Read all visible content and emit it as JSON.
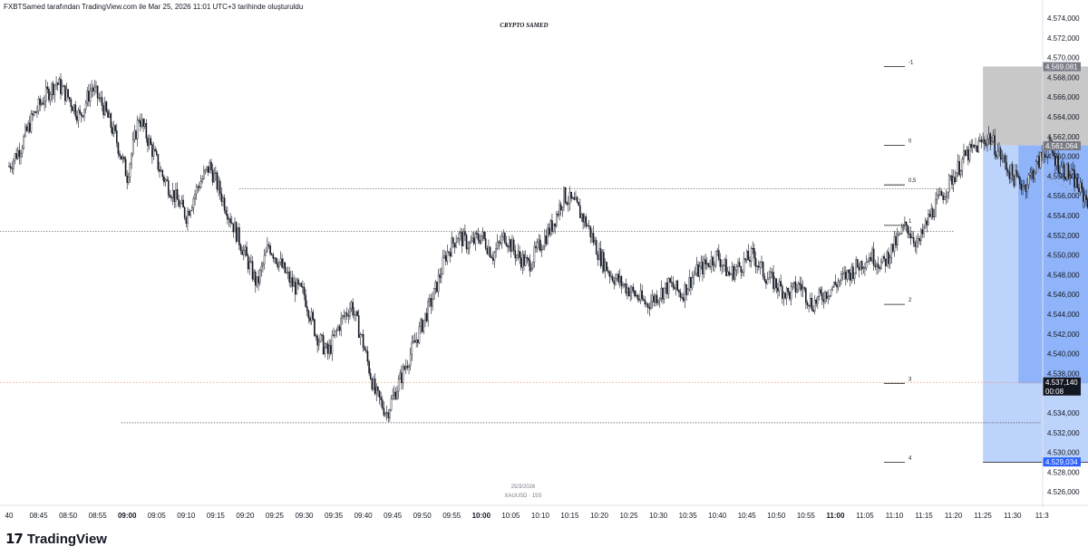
{
  "header": {
    "caption": "FXBTSamed tarafından TradingView.com ile Mar 25, 2026 11:01 UTC+3 tarihinde oluşturuldu"
  },
  "watermark": "CRYPTO SAMED",
  "footer": {
    "brand_logo": "17",
    "brand_name": "TradingView"
  },
  "colors": {
    "candle": "#131722",
    "gray_zone": "#c8c8c8",
    "blue_zone": "#8fb4f9",
    "light_blue_zone": "#bcd3fb",
    "price_line": "#f57f4a",
    "price_tag": "#131722",
    "target_tag": "#2962ff"
  },
  "chart_data": {
    "type": "candlestick",
    "symbol_label": "XAUUSD · 15S",
    "date_label": "25/3/2026",
    "ylim": [
      4.525,
      4.576
    ],
    "y_ticks": [
      "4.574,000",
      "4.572,000",
      "4.570,000",
      "4.568,000",
      "4.566,000",
      "4.564,000",
      "4.562,000",
      "4.560,000",
      "4.558,000",
      "4.556,000",
      "4.554,000",
      "4.552,000",
      "4.550,000",
      "4.548,000",
      "4.546,000",
      "4.544,000",
      "4.542,000",
      "4.540,000",
      "4.538,000",
      "4.534,000",
      "4.532,000",
      "4.530,000",
      "4.528,000",
      "4.526,000"
    ],
    "x_ticks": [
      "40",
      "08:45",
      "08:50",
      "08:55",
      "09:00",
      "09:05",
      "09:10",
      "09:15",
      "09:20",
      "09:25",
      "09:30",
      "09:35",
      "09:40",
      "09:45",
      "09:50",
      "09:55",
      "10:00",
      "10:05",
      "10:10",
      "10:15",
      "10:20",
      "10:25",
      "10:30",
      "10:35",
      "10:40",
      "10:45",
      "10:50",
      "10:55",
      "11:00",
      "11:05",
      "11:10",
      "11:15",
      "11:20",
      "11:25",
      "11:30",
      "11:3"
    ],
    "bold_x_ticks": [
      "09:00",
      "10:00",
      "11:00"
    ],
    "x_start_minute": 520,
    "x_minutes_per_tick": 5,
    "price_path": [
      [
        520,
        4.559
      ],
      [
        522,
        4.561
      ],
      [
        524,
        4.564
      ],
      [
        526,
        4.566
      ],
      [
        528,
        4.5675
      ],
      [
        530,
        4.566
      ],
      [
        532,
        4.564
      ],
      [
        534,
        4.567
      ],
      [
        536,
        4.565
      ],
      [
        538,
        4.562
      ],
      [
        540,
        4.558
      ],
      [
        542,
        4.564
      ],
      [
        544,
        4.561
      ],
      [
        546,
        4.558
      ],
      [
        548,
        4.556
      ],
      [
        550,
        4.554
      ],
      [
        552,
        4.557
      ],
      [
        554,
        4.559
      ],
      [
        556,
        4.556
      ],
      [
        558,
        4.553
      ],
      [
        560,
        4.55
      ],
      [
        562,
        4.547
      ],
      [
        564,
        4.551
      ],
      [
        566,
        4.549
      ],
      [
        568,
        4.547
      ],
      [
        570,
        4.546
      ],
      [
        572,
        4.542
      ],
      [
        574,
        4.54
      ],
      [
        576,
        4.543
      ],
      [
        578,
        4.545
      ],
      [
        580,
        4.541
      ],
      [
        582,
        4.536
      ],
      [
        584,
        4.534
      ],
      [
        586,
        4.537
      ],
      [
        588,
        4.54
      ],
      [
        590,
        4.543
      ],
      [
        592,
        4.546
      ],
      [
        594,
        4.55
      ],
      [
        596,
        4.552
      ],
      [
        598,
        4.551
      ],
      [
        600,
        4.552
      ],
      [
        602,
        4.55
      ],
      [
        604,
        4.552
      ],
      [
        606,
        4.55
      ],
      [
        608,
        4.549
      ],
      [
        610,
        4.551
      ],
      [
        612,
        4.553
      ],
      [
        614,
        4.556
      ],
      [
        616,
        4.555
      ],
      [
        618,
        4.553
      ],
      [
        620,
        4.55
      ],
      [
        622,
        4.548
      ],
      [
        624,
        4.547
      ],
      [
        626,
        4.546
      ],
      [
        628,
        4.545
      ],
      [
        630,
        4.546
      ],
      [
        632,
        4.547
      ],
      [
        634,
        4.546
      ],
      [
        636,
        4.548
      ],
      [
        638,
        4.549
      ],
      [
        640,
        4.55
      ],
      [
        642,
        4.548
      ],
      [
        644,
        4.549
      ],
      [
        646,
        4.55
      ],
      [
        648,
        4.548
      ],
      [
        650,
        4.547
      ],
      [
        652,
        4.546
      ],
      [
        654,
        4.547
      ],
      [
        656,
        4.545
      ],
      [
        658,
        4.546
      ],
      [
        660,
        4.547
      ],
      [
        662,
        4.548
      ],
      [
        664,
        4.549
      ],
      [
        666,
        4.55
      ],
      [
        668,
        4.549
      ],
      [
        670,
        4.551
      ],
      [
        672,
        4.553
      ],
      [
        674,
        4.551
      ],
      [
        676,
        4.554
      ],
      [
        678,
        4.556
      ],
      [
        680,
        4.558
      ],
      [
        682,
        4.56
      ],
      [
        684,
        4.561
      ],
      [
        686,
        4.562
      ],
      [
        688,
        4.56
      ],
      [
        690,
        4.558
      ],
      [
        692,
        4.557
      ],
      [
        694,
        4.559
      ],
      [
        696,
        4.561
      ],
      [
        698,
        4.559
      ],
      [
        700,
        4.558
      ],
      [
        702,
        4.556
      ],
      [
        704,
        4.555
      ],
      [
        706,
        4.554
      ],
      [
        708,
        4.552
      ],
      [
        710,
        4.55
      ],
      [
        712,
        4.546
      ],
      [
        714,
        4.545
      ],
      [
        716,
        4.548
      ],
      [
        718,
        4.55
      ],
      [
        720,
        4.552
      ],
      [
        722,
        4.551
      ],
      [
        724,
        4.549
      ],
      [
        726,
        4.547
      ],
      [
        728,
        4.546
      ],
      [
        730,
        4.543
      ],
      [
        732,
        4.541
      ],
      [
        734,
        4.544
      ],
      [
        736,
        4.546
      ],
      [
        738,
        4.545
      ],
      [
        740,
        4.544
      ],
      [
        742,
        4.546
      ],
      [
        744,
        4.542
      ],
      [
        746,
        4.54
      ],
      [
        748,
        4.539
      ],
      [
        750,
        4.538
      ],
      [
        752,
        4.54
      ],
      [
        754,
        4.539
      ],
      [
        756,
        4.538
      ]
    ],
    "levels": {
      "upper_dotted": 4.5567,
      "mid_dotted": 4.5524,
      "lower_dotted": 4.533,
      "current_price": 4.5371
    },
    "price_tags": [
      {
        "price": 4.569081,
        "label": "4.569,081",
        "style": "gray"
      },
      {
        "price": 4.561064,
        "label": "4.561,064",
        "style": "gray"
      },
      {
        "price": 4.53714,
        "label": "4.537,140",
        "style": "dark",
        "sub": "00:08"
      },
      {
        "price": 4.529034,
        "label": "4.529,034",
        "style": "blue"
      }
    ],
    "fib_levels": [
      {
        "label": "-1",
        "price": 4.5691
      },
      {
        "label": "0",
        "price": 4.5611
      },
      {
        "label": "0,5",
        "price": 4.5571
      },
      {
        "label": "1",
        "price": 4.553
      },
      {
        "label": "2",
        "price": 4.545
      },
      {
        "label": "3",
        "price": 4.537
      },
      {
        "label": "4",
        "price": 4.529
      }
    ],
    "zones": {
      "stop_top": 4.5691,
      "entry": 4.5611,
      "mid_target": 4.537,
      "final_target": 4.529,
      "start_minute": 685,
      "end_minute": 780,
      "inner_start_minute": 691,
      "inner_end_minute": 780
    }
  }
}
